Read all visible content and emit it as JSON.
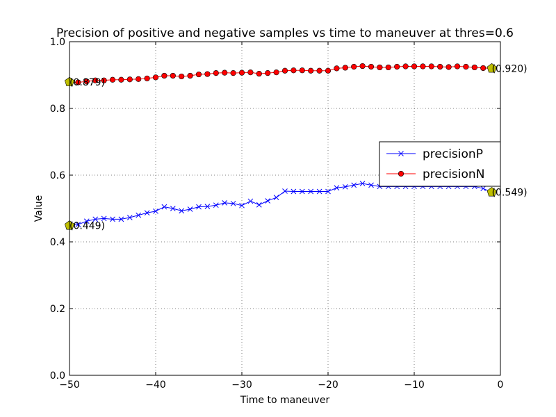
{
  "chart_data": {
    "type": "line",
    "title": "Precision of positive and negative samples vs time to maneuver at thres=0.6",
    "xlabel": "Time to maneuver",
    "ylabel": "Value",
    "xlim": [
      -50,
      0
    ],
    "ylim": [
      0,
      1.0
    ],
    "xticks": [
      -50,
      -40,
      -30,
      -20,
      -10,
      0
    ],
    "xtick_labels": [
      "−50",
      "−40",
      "−30",
      "−20",
      "−10",
      "0"
    ],
    "yticks": [
      0,
      0.2,
      0.4,
      0.6,
      0.8,
      1.0
    ],
    "ytick_labels": [
      "0.0",
      "0.2",
      "0.4",
      "0.6",
      "0.8",
      "1.0"
    ],
    "grid": true,
    "legend_position": "center-right",
    "x": [
      -50,
      -49,
      -48,
      -47,
      -46,
      -45,
      -44,
      -43,
      -42,
      -41,
      -40,
      -39,
      -38,
      -37,
      -36,
      -35,
      -34,
      -33,
      -32,
      -31,
      -30,
      -29,
      -28,
      -27,
      -26,
      -25,
      -24,
      -23,
      -22,
      -21,
      -20,
      -19,
      -18,
      -17,
      -16,
      -15,
      -14,
      -13,
      -12,
      -11,
      -10,
      -9,
      -8,
      -7,
      -6,
      -5,
      -4,
      -3,
      -2,
      -1
    ],
    "series": [
      {
        "name": "precisionP",
        "color": "#0000ff",
        "marker": "x",
        "values": [
          0.449,
          0.452,
          0.462,
          0.468,
          0.47,
          0.468,
          0.468,
          0.473,
          0.48,
          0.487,
          0.492,
          0.505,
          0.5,
          0.493,
          0.498,
          0.505,
          0.506,
          0.51,
          0.517,
          0.515,
          0.509,
          0.522,
          0.511,
          0.523,
          0.533,
          0.552,
          0.551,
          0.551,
          0.551,
          0.551,
          0.551,
          0.562,
          0.565,
          0.57,
          0.575,
          0.57,
          0.566,
          0.566,
          0.566,
          0.566,
          0.566,
          0.566,
          0.566,
          0.566,
          0.566,
          0.566,
          0.566,
          0.566,
          0.56,
          0.549
        ]
      },
      {
        "name": "precisionN",
        "color": "#ff0000",
        "marker": "o",
        "values": [
          0.879,
          0.878,
          0.881,
          0.884,
          0.884,
          0.886,
          0.886,
          0.887,
          0.888,
          0.89,
          0.893,
          0.898,
          0.898,
          0.896,
          0.898,
          0.902,
          0.903,
          0.906,
          0.907,
          0.906,
          0.907,
          0.908,
          0.904,
          0.906,
          0.908,
          0.913,
          0.914,
          0.914,
          0.913,
          0.913,
          0.913,
          0.92,
          0.922,
          0.925,
          0.927,
          0.925,
          0.923,
          0.923,
          0.925,
          0.926,
          0.926,
          0.926,
          0.926,
          0.925,
          0.924,
          0.926,
          0.925,
          0.923,
          0.921,
          0.92
        ]
      }
    ],
    "highlight_color": "#bfbf00",
    "annotations": [
      {
        "text": "(0.879)",
        "x": -50,
        "y": 0.879
      },
      {
        "text": "(0.920)",
        "x": -1,
        "y": 0.92
      },
      {
        "text": "(0.449)",
        "x": -50,
        "y": 0.449
      },
      {
        "text": "(0.549)",
        "x": -1,
        "y": 0.549
      }
    ]
  }
}
